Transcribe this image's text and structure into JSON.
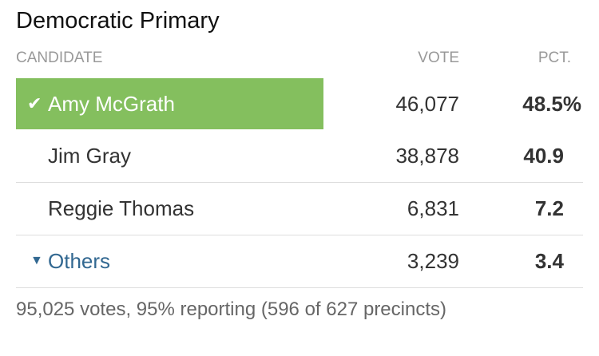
{
  "header": {
    "title": "Democratic Primary"
  },
  "table": {
    "columns": [
      "CANDIDATE",
      "VOTE",
      "PCT."
    ],
    "rows": [
      [
        "Amy McGrath",
        "46,077",
        "48.5%"
      ],
      [
        "Jim Gray",
        "38,878",
        "40.9"
      ],
      [
        "Reggie Thomas",
        "6,831",
        "7.2"
      ],
      [
        "Others",
        "3,239",
        "3.4"
      ]
    ]
  },
  "footer": {
    "text": "95,025 votes, 95% reporting (596 of 627 precincts)"
  }
}
